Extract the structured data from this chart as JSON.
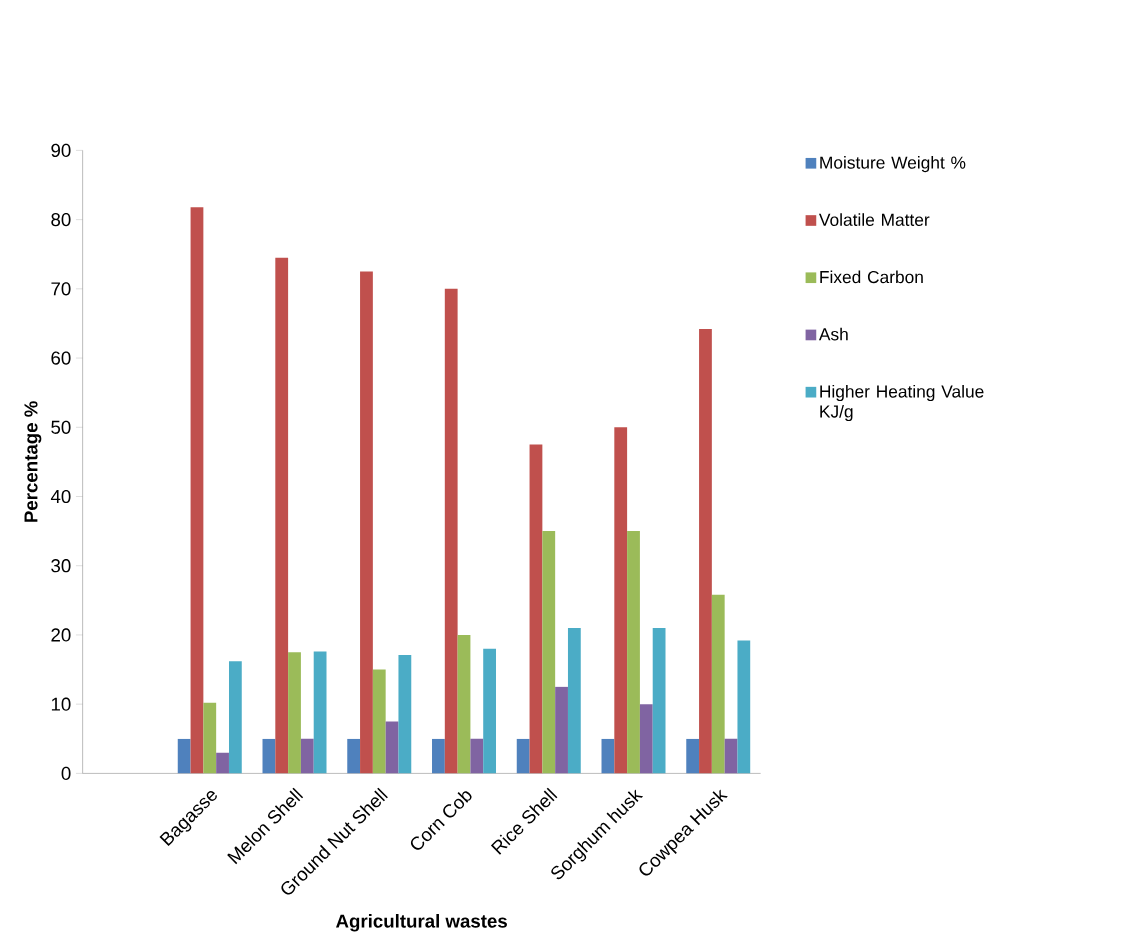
{
  "chart_data": {
    "type": "bar",
    "xlabel": "Agricultural wastes",
    "ylabel": "Percentage %",
    "categories": [
      null,
      "Bagasse",
      "Melon Shell",
      "Ground Nut Shell",
      "Corn Cob",
      "Rice Shell",
      "Sorghum husk",
      "Cowpea Husk"
    ],
    "series": [
      {
        "name": "Moisture Weight %",
        "color": "#4f81bd",
        "values": [
          null,
          5,
          5,
          5,
          5,
          5,
          5,
          5
        ]
      },
      {
        "name": "Volatile Matter",
        "color": "#c0504d",
        "values": [
          null,
          81.8,
          74.5,
          72.5,
          70,
          47.5,
          50,
          64.2
        ]
      },
      {
        "name": "Fixed Carbon",
        "color": "#9bbb59",
        "values": [
          null,
          10.2,
          17.5,
          15,
          20,
          35,
          35,
          25.8
        ]
      },
      {
        "name": "Ash",
        "color": "#8064a2",
        "values": [
          null,
          3,
          5,
          7.5,
          5,
          12.5,
          10,
          5
        ]
      },
      {
        "name": "Higher Heating Value KJ/g",
        "color": "#4bacc6",
        "values": [
          null,
          16.2,
          17.6,
          17.1,
          18,
          21,
          21,
          19.2
        ]
      }
    ],
    "ylim": [
      0,
      90
    ],
    "yticks": [
      0,
      10,
      20,
      30,
      40,
      50,
      60,
      70,
      80,
      90
    ],
    "grid": false,
    "legend": "right"
  }
}
